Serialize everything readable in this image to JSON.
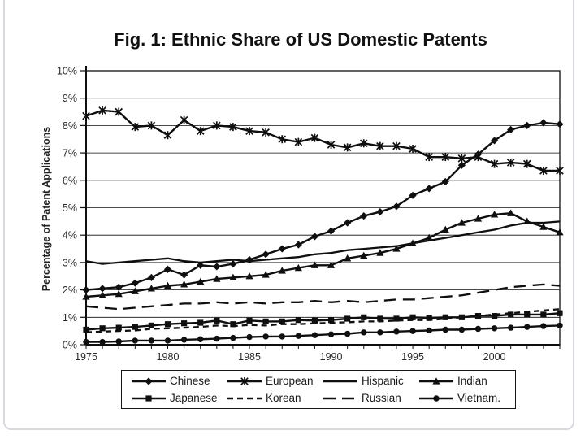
{
  "page": {
    "background_color": "#ffffff",
    "frame_color": "#d8d8de",
    "ink_color": "#0f0f0f"
  },
  "chart_data": {
    "type": "line",
    "title": "Fig. 1: Ethnic Share of US Domestic Patents",
    "xlabel": "",
    "ylabel": "Percentage of Patent Applications",
    "xlim": [
      1975,
      2004
    ],
    "ylim": [
      0,
      10
    ],
    "x": [
      1975,
      1976,
      1977,
      1978,
      1979,
      1980,
      1981,
      1982,
      1983,
      1984,
      1985,
      1986,
      1987,
      1988,
      1989,
      1990,
      1991,
      1992,
      1993,
      1994,
      1995,
      1996,
      1997,
      1998,
      1999,
      2000,
      2001,
      2002,
      2003,
      2004
    ],
    "x_tick_years": [
      1975,
      1980,
      1985,
      1990,
      1995,
      2000
    ],
    "y_tick_labels": [
      "0%",
      "1%",
      "2%",
      "3%",
      "4%",
      "5%",
      "6%",
      "7%",
      "8%",
      "9%",
      "10%"
    ],
    "grid": "horizontal",
    "legend_position": "bottom",
    "series": [
      {
        "name": "Chinese",
        "marker": "diamond",
        "line": "solid",
        "values": [
          2.0,
          2.05,
          2.1,
          2.25,
          2.45,
          2.75,
          2.55,
          2.9,
          2.85,
          2.95,
          3.1,
          3.3,
          3.5,
          3.65,
          3.95,
          4.15,
          4.45,
          4.7,
          4.85,
          5.05,
          5.45,
          5.7,
          5.95,
          6.55,
          6.95,
          7.45,
          7.85,
          8.0,
          8.1,
          8.05
        ]
      },
      {
        "name": "European",
        "marker": "asterisk",
        "line": "solid",
        "values": [
          8.35,
          8.55,
          8.5,
          7.95,
          8.0,
          7.65,
          8.2,
          7.8,
          8.0,
          7.95,
          7.8,
          7.75,
          7.5,
          7.4,
          7.55,
          7.3,
          7.2,
          7.35,
          7.25,
          7.25,
          7.15,
          6.85,
          6.85,
          6.8,
          6.85,
          6.6,
          6.65,
          6.6,
          6.35,
          6.35
        ]
      },
      {
        "name": "Hispanic",
        "marker": "none",
        "line": "solid",
        "values": [
          3.05,
          2.95,
          3.0,
          3.05,
          3.1,
          3.15,
          3.05,
          3.0,
          3.05,
          3.1,
          3.05,
          3.1,
          3.15,
          3.2,
          3.3,
          3.35,
          3.45,
          3.5,
          3.55,
          3.6,
          3.7,
          3.8,
          3.9,
          4.0,
          4.1,
          4.2,
          4.35,
          4.45,
          4.45,
          4.5
        ]
      },
      {
        "name": "Indian",
        "marker": "triangle",
        "line": "solid",
        "values": [
          1.75,
          1.8,
          1.85,
          1.95,
          2.05,
          2.15,
          2.2,
          2.3,
          2.4,
          2.45,
          2.5,
          2.55,
          2.7,
          2.8,
          2.9,
          2.9,
          3.15,
          3.25,
          3.35,
          3.5,
          3.7,
          3.9,
          4.2,
          4.45,
          4.6,
          4.75,
          4.8,
          4.5,
          4.3,
          4.1
        ]
      },
      {
        "name": "Japanese",
        "marker": "square",
        "line": "solid",
        "values": [
          0.55,
          0.6,
          0.62,
          0.65,
          0.7,
          0.75,
          0.78,
          0.8,
          0.88,
          0.75,
          0.88,
          0.85,
          0.85,
          0.9,
          0.88,
          0.9,
          0.95,
          1.0,
          0.95,
          0.95,
          1.0,
          0.98,
          1.0,
          1.0,
          1.05,
          1.05,
          1.1,
          1.1,
          1.1,
          1.15
        ]
      },
      {
        "name": "Korean",
        "marker": "none",
        "line": "dashed",
        "values": [
          0.45,
          0.48,
          0.5,
          0.52,
          0.58,
          0.6,
          0.62,
          0.65,
          0.7,
          0.68,
          0.72,
          0.7,
          0.75,
          0.75,
          0.78,
          0.8,
          0.82,
          0.85,
          0.85,
          0.88,
          0.9,
          0.9,
          0.95,
          1.0,
          1.05,
          1.1,
          1.15,
          1.2,
          1.25,
          1.3
        ]
      },
      {
        "name": "Russian",
        "marker": "none",
        "line": "longdash",
        "values": [
          1.4,
          1.35,
          1.3,
          1.35,
          1.4,
          1.45,
          1.5,
          1.5,
          1.55,
          1.5,
          1.55,
          1.5,
          1.55,
          1.55,
          1.6,
          1.55,
          1.6,
          1.55,
          1.6,
          1.65,
          1.65,
          1.7,
          1.75,
          1.8,
          1.9,
          2.0,
          2.1,
          2.15,
          2.2,
          2.15
        ]
      },
      {
        "name": "Vietnam.",
        "marker": "circle",
        "line": "solid",
        "values": [
          0.1,
          0.1,
          0.12,
          0.15,
          0.15,
          0.15,
          0.18,
          0.2,
          0.22,
          0.25,
          0.28,
          0.3,
          0.3,
          0.32,
          0.35,
          0.38,
          0.4,
          0.45,
          0.45,
          0.48,
          0.5,
          0.52,
          0.55,
          0.55,
          0.58,
          0.6,
          0.62,
          0.65,
          0.68,
          0.7
        ]
      }
    ]
  }
}
